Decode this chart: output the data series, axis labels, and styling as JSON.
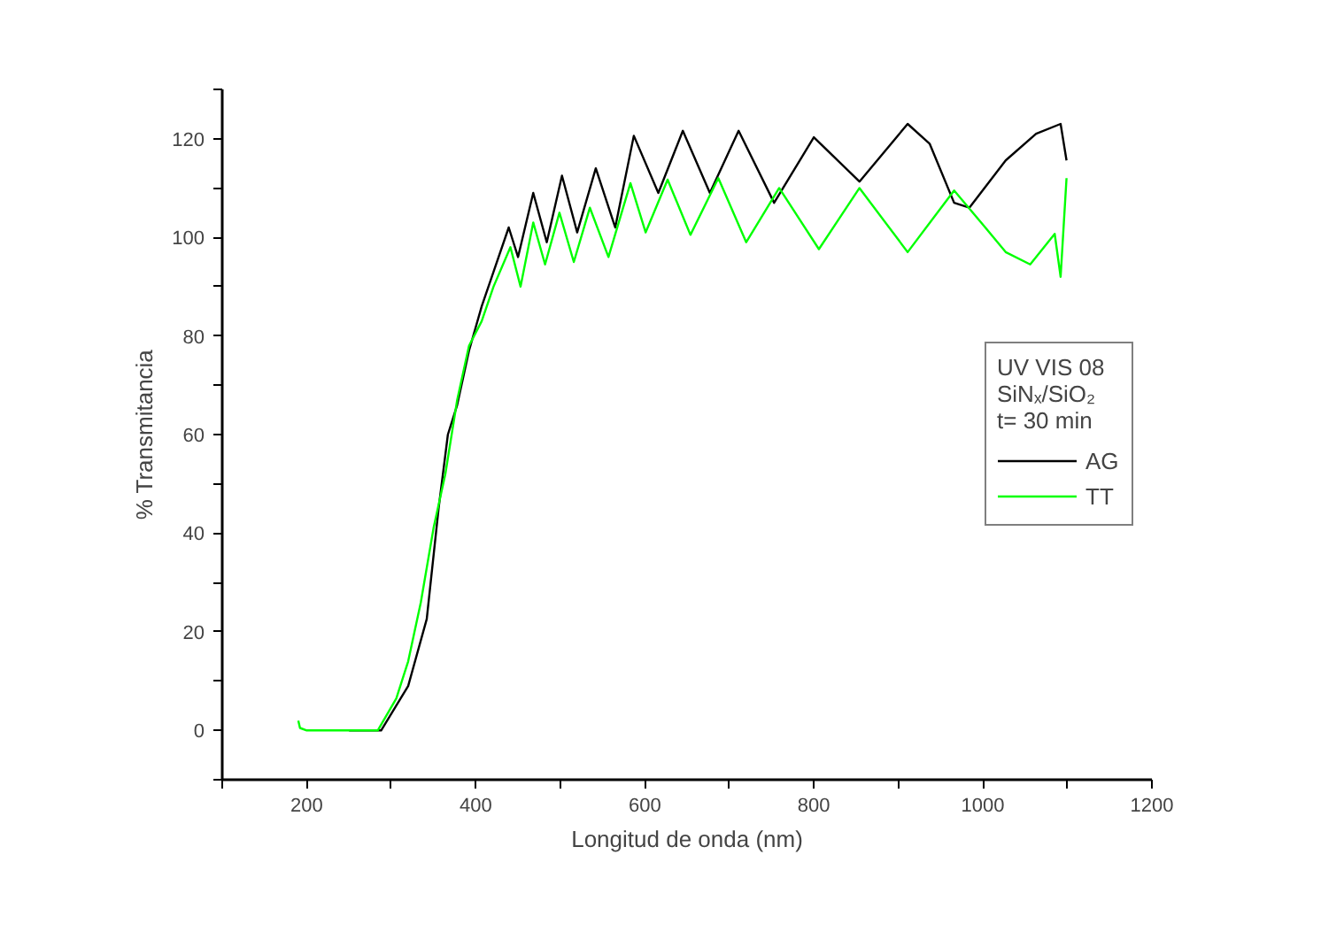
{
  "chart_data": {
    "type": "line",
    "xlabel": "Longitud de onda (nm)",
    "ylabel": "% Transmitancia",
    "legend_title": "UV VIS 08\nSiNₓ/SiO₂\nt= 30 min",
    "legend": "right",
    "grid": false,
    "xlim": [
      100,
      1200
    ],
    "xticks": [
      {
        "value": 100,
        "label": null
      },
      200,
      {
        "value": 300,
        "label": null
      },
      400,
      {
        "value": 500,
        "label": null
      },
      600,
      {
        "value": 700,
        "label": null
      },
      800,
      {
        "value": 900,
        "label": null
      },
      1000,
      {
        "value": 1100,
        "label": null
      },
      1200
    ],
    "ylim": [
      -10,
      130
    ],
    "yticks": [
      {
        "value": -10,
        "label": null
      },
      0,
      {
        "value": 10,
        "label": null
      },
      20,
      {
        "value": 30,
        "label": null
      },
      40,
      {
        "value": 50,
        "label": null
      },
      60,
      {
        "value": 70,
        "label": null
      },
      80,
      {
        "value": 90,
        "label": null
      },
      100,
      {
        "value": 110,
        "label": null
      },
      120,
      {
        "value": 130,
        "label": null
      }
    ],
    "series": [
      {
        "name": "AG",
        "color": "#000000",
        "x": [
          250,
          288,
          320,
          342,
          356,
          367,
          378,
          392,
          407,
          421,
          439,
          450,
          468,
          484,
          502,
          520,
          542,
          565,
          587,
          616,
          645,
          677,
          711,
          753,
          800,
          854,
          911,
          937,
          966,
          984,
          1027,
          1063,
          1092,
          1099
        ],
        "values": [
          0,
          0,
          9,
          22.6,
          45,
          60,
          66,
          77,
          86,
          93,
          102,
          96,
          109,
          99,
          112.5,
          101,
          114,
          102,
          120.6,
          109,
          121.6,
          109,
          121.6,
          107,
          120.3,
          111.3,
          123,
          119,
          107,
          106,
          115.6,
          121,
          123,
          115.6
        ]
      },
      {
        "name": "TT",
        "color": "#00ff00",
        "x": [
          190,
          192,
          200,
          250,
          284,
          306,
          320,
          335,
          350,
          364,
          378,
          392,
          407,
          421,
          441,
          453,
          468,
          482,
          499,
          516,
          535,
          557,
          583,
          601,
          627,
          654,
          687,
          720,
          759,
          806,
          854,
          911,
          966,
          998,
          1027,
          1056,
          1085,
          1092,
          1099
        ],
        "values": [
          2,
          0.5,
          0,
          0,
          0,
          6.5,
          14,
          26,
          41,
          52,
          67,
          78,
          83,
          90,
          98,
          90,
          103,
          94.5,
          105,
          95,
          106,
          96,
          111,
          101,
          111.7,
          100.5,
          112,
          99,
          110,
          97.6,
          110,
          97,
          109.5,
          103,
          97,
          94.5,
          100.7,
          92,
          112
        ]
      }
    ]
  }
}
